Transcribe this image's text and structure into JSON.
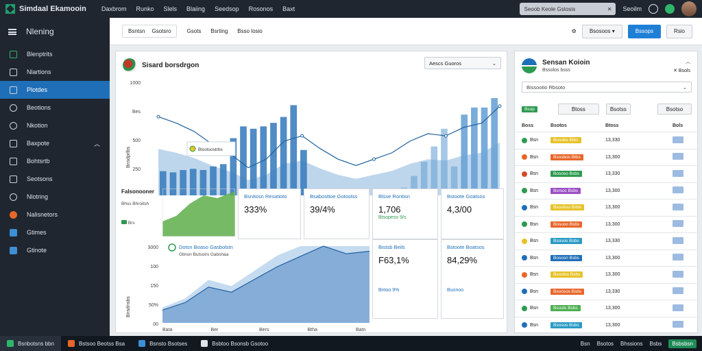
{
  "app": {
    "title": "Simdaal Ekamooin"
  },
  "topnav": [
    "Daxbrom",
    "Runko",
    "Slels",
    "Blaiing",
    "Seedsop",
    "Rosonos",
    "Baxt"
  ],
  "search": {
    "placeholder": "Seoob Keole Gstosis"
  },
  "top_right": {
    "user_label": "Seoilm"
  },
  "sidebar": {
    "header": "Nlening",
    "items": [
      {
        "label": "Blenptrits",
        "icon": "dashboard-icon"
      },
      {
        "label": "Nlartions",
        "icon": "folder-icon"
      },
      {
        "label": "Plotdes",
        "icon": "chart-icon",
        "active": true
      },
      {
        "label": "Beotions",
        "icon": "settings-icon"
      },
      {
        "label": "Nkotion",
        "icon": "user-icon"
      },
      {
        "label": "Baxpote",
        "icon": "report-icon",
        "chevron": true
      },
      {
        "label": "Bohtsrtb",
        "icon": "book-icon"
      },
      {
        "label": "Seotsons",
        "icon": "document-icon"
      },
      {
        "label": "Nlotring",
        "icon": "gear-icon"
      },
      {
        "label": "Nalisnetors",
        "icon": "alert-icon"
      },
      {
        "label": "Gtimes",
        "icon": "flag-icon"
      },
      {
        "label": "Gtinote",
        "icon": "bird-icon"
      }
    ]
  },
  "toolbar": {
    "group1": [
      "Bsntsn",
      "Gsotsro"
    ],
    "group2": [
      "Gsots",
      "Bsrting"
    ],
    "group3": "Bsso losio",
    "buttons": [
      "Bsosoos",
      "Bssops",
      "Rsio"
    ]
  },
  "main_chart": {
    "title": "Sisard borsdrgon",
    "dropdown": "Aescs Guoros",
    "tooltip_label": "Btsotsostrbs",
    "yticks": [
      "1000",
      "Bes",
      "500",
      "250",
      "0"
    ],
    "ylabel": "Bnsdprlbs",
    "xticks": [
      "Itan",
      "Ber",
      "5/28",
      "Drjin",
      "Drsn",
      "BBN",
      "Blot",
      "BRR",
      "Nab"
    ]
  },
  "mini_green": {
    "title": "Falsonooner",
    "sub": "Bhss Bhroitsh",
    "legend": "Brs"
  },
  "kpis": [
    {
      "label": "Bsnitosn Resatioto",
      "value": "333%",
      "sub": ""
    },
    {
      "label": "Bsabosttoe Gotostss",
      "value": "39/4%",
      "sub": ""
    },
    {
      "label": "Blsse Rontisn",
      "value": "1,706",
      "sub": "Btsopeso 9/s"
    },
    {
      "label": "Bstoote Goatsos",
      "value": "4,3/00",
      "sub": ""
    }
  ],
  "area_chart": {
    "title": "Dotsn Boaso Gasbolstn",
    "sub": "Gtinsn Butsoirs Gabshaa",
    "yticks": [
      "3000",
      "100",
      "150",
      "50%",
      "00"
    ],
    "ylabel": "Bnsdnsbs",
    "xticks": [
      "Bata",
      "Ber",
      "Bers",
      "Btha",
      "Batn"
    ]
  },
  "kpis2": [
    {
      "label": "Bistsb Beils",
      "value": "F63,1%",
      "sub": "Bntoo 9%"
    },
    {
      "label": "Bstoote Boatsos",
      "value": "84,29%",
      "sub": "Buonoo"
    }
  ],
  "right_panel": {
    "title": "Sensan Koioin",
    "subtitle": "Bssolos bsss",
    "close_label": "Bsols",
    "search_placeholder": "Bissootio Rbsoto",
    "status_tag": "Bsop",
    "filters": [
      "Btoss",
      "Bsotss",
      "Bsotso"
    ],
    "columns": [
      "Boss",
      "Bsotos",
      "Btoss",
      "Bols"
    ],
    "rows": [
      {
        "icon_color": "#2e9a50",
        "code": "Bsn",
        "status": "Bosobs Btbs",
        "status_color": "#e6c229",
        "value": "13,330",
        "tag": "Bsn"
      },
      {
        "icon_color": "#e8662a",
        "code": "Bsn",
        "status": "Bsosbos Btbs",
        "status_color": "#e8662a",
        "value": "13,300",
        "tag": "Bsn"
      },
      {
        "icon_color": "#d64a2a",
        "code": "Bsn",
        "status": "Bososo Bsbs",
        "status_color": "#2e9a50",
        "value": "13,330",
        "tag": "Bsn"
      },
      {
        "icon_color": "#2e9a50",
        "code": "Bsn",
        "status": "Bsrsoc Bsbs",
        "status_color": "#9b4fc4",
        "value": "13,300",
        "tag": "Bsn"
      },
      {
        "icon_color": "#1f6fb8",
        "code": "Bsn",
        "status": "Bsosbso Bsbs",
        "status_color": "#e6c229",
        "value": "13,300",
        "tag": "Bsn"
      },
      {
        "icon_color": "#2e9a50",
        "code": "Bsn",
        "status": "Bosuoo Bsbs",
        "status_color": "#e8662a",
        "value": "13,300",
        "tag": "Bsn"
      },
      {
        "icon_color": "#e6c229",
        "code": "Bsn",
        "status": "Bsosos Bsbs",
        "status_color": "#2a9bc4",
        "value": "13,330",
        "tag": "Bsn"
      },
      {
        "icon_color": "#1f6fb8",
        "code": "Bsn",
        "status": "Bososn Bsbs",
        "status_color": "#1f6fb8",
        "value": "13,300",
        "tag": "Bsn"
      },
      {
        "icon_color": "#e8662a",
        "code": "Bsn",
        "status": "Bsostos Bsbs",
        "status_color": "#e6c229",
        "value": "13,300",
        "tag": "Bsn"
      },
      {
        "icon_color": "#1f6fb8",
        "code": "Bsn",
        "status": "Bsoosos Bsbs",
        "status_color": "#e8662a",
        "value": "13,330",
        "tag": "Bsn"
      },
      {
        "icon_color": "#2e9a50",
        "code": "Bsn",
        "status": "Bsusts Bsbs",
        "status_color": "#4caf50",
        "value": "13,300",
        "tag": "Bsn"
      },
      {
        "icon_color": "#1f6fb8",
        "code": "Bsn",
        "status": "Bsosos Bsbs",
        "status_color": "#2a9bc4",
        "value": "13,300",
        "tag": "Bsn"
      }
    ]
  },
  "taskbar": {
    "items": [
      {
        "label": "Bsnbotsns bbn",
        "color": "#2fb56a"
      },
      {
        "label": "Bstsoo Beotss Bsa",
        "color": "#e8662a"
      },
      {
        "label": "Bsnsto Bsotses",
        "color": "#3d8fd6"
      },
      {
        "label": "Bsbtoo Bsonsb Gsotoo",
        "color": "#dfe3ea"
      }
    ],
    "right": [
      "Bsn",
      "Bsotos",
      "Bhssions",
      "Bsbs",
      "Bsbsbsn"
    ]
  },
  "chart_data": [
    {
      "type": "bar",
      "categories": [
        "1",
        "2",
        "3",
        "4",
        "5",
        "6",
        "7",
        "8",
        "9",
        "10",
        "11",
        "12",
        "13",
        "14",
        "15",
        "16",
        "17",
        "18",
        "19",
        "20",
        "21",
        "22",
        "23",
        "24",
        "25",
        "26",
        "27",
        "28",
        "29",
        "30",
        "31",
        "32",
        "33",
        "34"
      ],
      "series": [
        {
          "values": [
            240,
            230,
            250,
            260,
            250,
            280,
            300,
            520,
            620,
            600,
            620,
            650,
            700,
            800,
            420,
            0,
            0,
            0,
            0,
            0,
            0,
            0,
            0,
            0,
            100,
            200,
            320,
            450,
            600,
            280,
            720,
            780,
            780,
            860
          ]
        }
      ],
      "ylim": [
        0,
        1000
      ]
    },
    {
      "type": "line",
      "x": [
        "1",
        "2",
        "3",
        "4",
        "5",
        "6",
        "7",
        "8",
        "9",
        "10",
        "11",
        "12",
        "13",
        "14",
        "15",
        "16",
        "17",
        "18",
        "19",
        "20"
      ],
      "series": [
        {
          "values": [
            780,
            720,
            640,
            520,
            430,
            300,
            380,
            550,
            600,
            480,
            380,
            320,
            380,
            440,
            550,
            620,
            600,
            680,
            720,
            880
          ]
        }
      ],
      "ylim": [
        0,
        1000
      ]
    },
    {
      "type": "area",
      "x": [
        "1",
        "2",
        "3",
        "4",
        "5",
        "6",
        "7",
        "8",
        "9",
        "10"
      ],
      "series": [
        {
          "values": [
            50,
            80,
            140,
            120,
            170,
            220,
            260,
            300,
            270,
            280
          ]
        }
      ],
      "ylim": [
        0,
        300
      ]
    }
  ]
}
